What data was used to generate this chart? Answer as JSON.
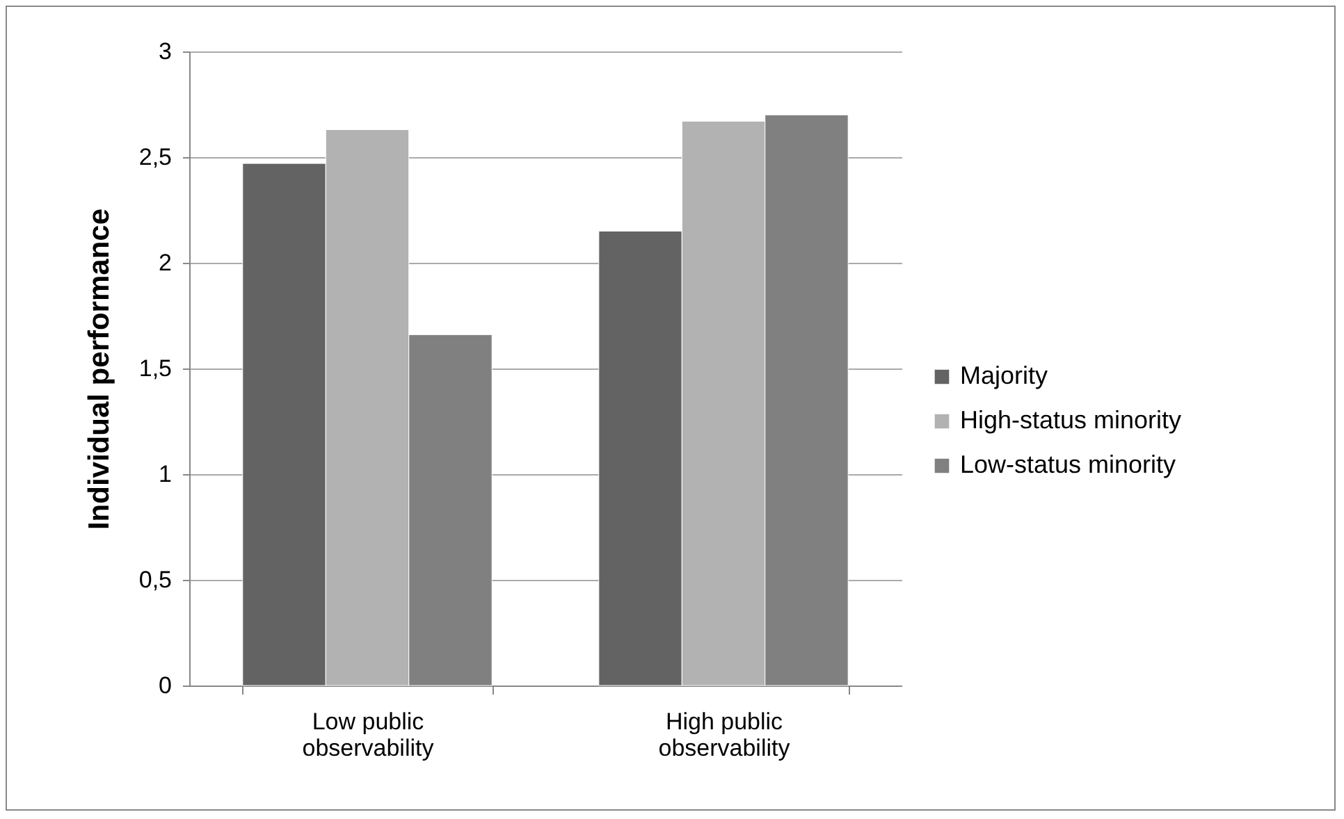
{
  "chart_data": {
    "type": "bar",
    "ylabel": "Individual performance",
    "categories": [
      "Low public observability",
      "High public observability"
    ],
    "series": [
      {
        "name": "Majority",
        "color": "#636363",
        "values": [
          2.47,
          2.15
        ]
      },
      {
        "name": "High-status minority",
        "color": "#b2b2b2",
        "values": [
          2.63,
          2.67
        ]
      },
      {
        "name": "Low-status minority",
        "color": "#808080",
        "values": [
          1.66,
          2.7
        ]
      }
    ],
    "ylim": [
      0,
      3
    ],
    "yticks": [
      0,
      {
        "value": 0.5,
        "label": "0,5"
      },
      1,
      {
        "value": 1.5,
        "label": "1,5"
      },
      2,
      {
        "value": 2.5,
        "label": "2,5"
      },
      3
    ],
    "grid": "y",
    "legend": "right"
  }
}
